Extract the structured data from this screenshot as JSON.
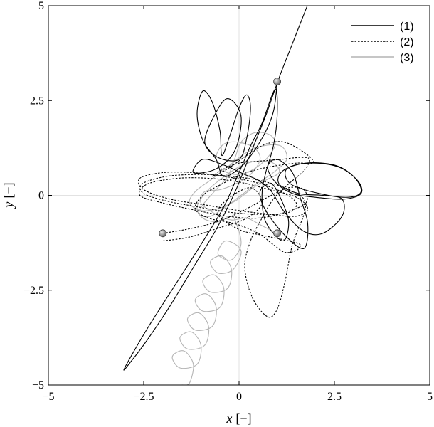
{
  "chart_data": {
    "type": "line",
    "title": "",
    "xlabel_var": "x",
    "xlabel_unit": "[−]",
    "ylabel_var": "y",
    "ylabel_unit": "[−]",
    "xlim": [
      -5,
      5
    ],
    "ylim": [
      -5,
      5
    ],
    "xticks": [
      -5,
      -2.5,
      0,
      2.5,
      5
    ],
    "yticks": [
      -5,
      -2.5,
      0,
      2.5,
      5
    ],
    "xtick_labels": [
      "−5",
      "−2.5",
      "0",
      "2.5",
      "5"
    ],
    "ytick_labels": [
      "−5",
      "−2.5",
      "0",
      "2.5",
      "5"
    ],
    "grid": "zero-lines",
    "legend": {
      "position": "top-right",
      "entries": [
        {
          "label": "(1)",
          "style": "solid",
          "color": "#000000"
        },
        {
          "label": "(2)",
          "style": "dotted",
          "color": "#000000"
        },
        {
          "label": "(3)",
          "style": "solid",
          "color": "#b4b4b4"
        }
      ]
    },
    "bodies": [
      {
        "x": 1.0,
        "y": 3.0
      },
      {
        "x": -2.0,
        "y": -1.0
      },
      {
        "x": 1.0,
        "y": -1.0
      }
    ],
    "series": [
      {
        "name": "(1)",
        "color": "#000000",
        "dash": "none",
        "points": [
          [
            1.0,
            3.0
          ],
          [
            0.9,
            2.2
          ],
          [
            0.6,
            1.5
          ],
          [
            0.1,
            0.8
          ],
          [
            -0.4,
            0.5
          ],
          [
            -0.6,
            0.95
          ],
          [
            -0.95,
            1.45
          ],
          [
            -1.1,
            2.15
          ],
          [
            -0.95,
            2.75
          ],
          [
            -0.7,
            2.45
          ],
          [
            -0.5,
            1.7
          ],
          [
            -0.45,
            1.05
          ],
          [
            -0.25,
            1.55
          ],
          [
            0.0,
            2.3
          ],
          [
            0.2,
            2.65
          ],
          [
            0.3,
            2.3
          ],
          [
            0.2,
            1.5
          ],
          [
            0.0,
            0.95
          ],
          [
            -0.55,
            1.0
          ],
          [
            -0.9,
            1.4
          ],
          [
            -0.65,
            2.1
          ],
          [
            -0.3,
            2.55
          ],
          [
            0.05,
            2.1
          ],
          [
            -0.1,
            1.2
          ],
          [
            -0.6,
            0.7
          ],
          [
            -1.2,
            0.6
          ],
          [
            -0.95,
            0.95
          ],
          [
            -0.4,
            0.8
          ],
          [
            0.15,
            0.55
          ],
          [
            0.5,
            0.4
          ],
          [
            0.85,
            0.1
          ],
          [
            1.2,
            -0.45
          ],
          [
            1.7,
            -0.95
          ],
          [
            2.2,
            -1.0
          ],
          [
            2.7,
            -0.55
          ],
          [
            2.7,
            -0.1
          ],
          [
            2.2,
            0.0
          ],
          [
            1.55,
            0.05
          ],
          [
            1.05,
            0.3
          ],
          [
            1.15,
            0.65
          ],
          [
            1.75,
            0.85
          ],
          [
            2.5,
            0.8
          ],
          [
            3.0,
            0.5
          ],
          [
            3.2,
            0.1
          ],
          [
            2.85,
            -0.05
          ],
          [
            2.1,
            0.05
          ],
          [
            1.35,
            0.3
          ],
          [
            1.25,
            0.7
          ],
          [
            1.85,
            0.85
          ],
          [
            2.6,
            0.75
          ],
          [
            3.1,
            0.4
          ],
          [
            3.2,
            0.05
          ],
          [
            2.75,
            -0.1
          ],
          [
            2.0,
            -0.05
          ],
          [
            1.4,
            0.05
          ],
          [
            0.95,
            0.35
          ],
          [
            0.75,
            0.75
          ],
          [
            1.0,
            0.95
          ],
          [
            1.4,
            0.6
          ],
          [
            1.6,
            -0.05
          ],
          [
            1.8,
            -0.75
          ],
          [
            1.7,
            -1.4
          ],
          [
            1.2,
            -1.05
          ],
          [
            0.7,
            -0.4
          ],
          [
            0.55,
            0.1
          ],
          [
            0.85,
            0.3
          ],
          [
            1.1,
            -0.1
          ],
          [
            1.3,
            -0.7
          ],
          [
            1.15,
            -1.2
          ],
          [
            0.7,
            -0.7
          ],
          [
            0.6,
            0.0
          ],
          [
            0.7,
            0.6
          ],
          [
            0.9,
            1.3
          ],
          [
            1.0,
            2.1
          ],
          [
            0.95,
            2.8
          ],
          [
            0.6,
            1.9
          ],
          [
            0.3,
            1.3
          ],
          [
            0.0,
            0.6
          ],
          [
            -0.4,
            -0.3
          ],
          [
            -1.0,
            -1.3
          ],
          [
            -1.7,
            -2.4
          ],
          [
            -2.4,
            -3.5
          ],
          [
            -3.0,
            -4.55
          ],
          [
            -2.85,
            -4.4
          ],
          [
            -2.4,
            -3.8
          ],
          [
            -1.8,
            -2.9
          ],
          [
            -1.2,
            -1.9
          ],
          [
            -0.6,
            -0.9
          ],
          [
            -0.1,
            0.1
          ],
          [
            0.3,
            1.1
          ],
          [
            0.7,
            2.1
          ],
          [
            1.05,
            3.1
          ],
          [
            1.4,
            4.0
          ],
          [
            1.75,
            4.9
          ],
          [
            1.8,
            5.0
          ]
        ]
      },
      {
        "name": "(2)",
        "color": "#000000",
        "dash": "2.5 2",
        "points": [
          [
            -2.0,
            -1.0
          ],
          [
            -1.4,
            -0.9
          ],
          [
            -0.75,
            -0.75
          ],
          [
            -0.2,
            -0.55
          ],
          [
            0.3,
            -0.3
          ],
          [
            0.75,
            -0.05
          ],
          [
            1.3,
            0.2
          ],
          [
            1.7,
            0.15
          ],
          [
            1.75,
            -0.2
          ],
          [
            1.2,
            -0.45
          ],
          [
            0.5,
            -0.6
          ],
          [
            -0.3,
            -0.55
          ],
          [
            -1.1,
            -0.4
          ],
          [
            -2.0,
            -0.2
          ],
          [
            -2.6,
            0.0
          ],
          [
            -2.4,
            0.3
          ],
          [
            -1.6,
            0.45
          ],
          [
            -0.8,
            0.45
          ],
          [
            0.0,
            0.35
          ],
          [
            0.8,
            0.15
          ],
          [
            1.5,
            -0.05
          ],
          [
            1.8,
            -0.35
          ],
          [
            1.5,
            -0.55
          ],
          [
            0.8,
            -0.5
          ],
          [
            0.0,
            -0.4
          ],
          [
            -0.9,
            -0.25
          ],
          [
            -1.8,
            -0.1
          ],
          [
            -2.5,
            0.15
          ],
          [
            -2.6,
            0.45
          ],
          [
            -2.0,
            0.6
          ],
          [
            -1.2,
            0.6
          ],
          [
            -0.4,
            0.5
          ],
          [
            0.4,
            0.35
          ],
          [
            1.1,
            0.1
          ],
          [
            1.5,
            -0.2
          ],
          [
            1.3,
            -0.45
          ],
          [
            0.6,
            -0.5
          ],
          [
            -0.2,
            -0.45
          ],
          [
            -1.1,
            -0.3
          ],
          [
            -1.9,
            -0.15
          ],
          [
            -2.5,
            0.05
          ],
          [
            -2.55,
            0.3
          ],
          [
            -1.9,
            0.5
          ],
          [
            -1.0,
            0.55
          ],
          [
            -0.2,
            0.5
          ],
          [
            0.5,
            0.4
          ],
          [
            1.2,
            0.2
          ],
          [
            1.7,
            -0.1
          ],
          [
            1.7,
            -0.5
          ],
          [
            1.4,
            -1.3
          ],
          [
            1.2,
            -2.3
          ],
          [
            1.0,
            -3.0
          ],
          [
            0.75,
            -3.2
          ],
          [
            0.35,
            -2.7
          ],
          [
            0.15,
            -1.9
          ],
          [
            0.3,
            -1.2
          ],
          [
            0.6,
            -0.6
          ],
          [
            0.9,
            -0.1
          ],
          [
            1.3,
            0.3
          ],
          [
            1.7,
            0.65
          ],
          [
            1.85,
            0.95
          ],
          [
            1.6,
            1.0
          ],
          [
            1.1,
            0.95
          ],
          [
            0.5,
            0.9
          ],
          [
            0.0,
            0.85
          ],
          [
            -0.4,
            0.7
          ],
          [
            -0.7,
            0.5
          ],
          [
            -0.3,
            0.7
          ],
          [
            0.2,
            1.05
          ],
          [
            0.7,
            1.35
          ],
          [
            1.2,
            1.4
          ],
          [
            1.75,
            1.1
          ],
          [
            1.95,
            0.85
          ],
          [
            1.5,
            0.85
          ],
          [
            0.8,
            0.75
          ],
          [
            0.2,
            0.6
          ],
          [
            -0.45,
            0.3
          ],
          [
            -0.95,
            0.0
          ],
          [
            -1.15,
            -0.35
          ],
          [
            -0.8,
            -0.6
          ],
          [
            -0.1,
            -0.75
          ],
          [
            0.5,
            -1.0
          ],
          [
            0.9,
            -1.3
          ],
          [
            1.2,
            -1.5
          ],
          [
            1.5,
            -1.45
          ],
          [
            1.6,
            -1.3
          ],
          [
            1.3,
            -1.2
          ],
          [
            0.6,
            -1.05
          ],
          [
            0.0,
            -0.9
          ],
          [
            -0.55,
            -0.5
          ],
          [
            -0.3,
            -0.1
          ],
          [
            0.3,
            0.2
          ],
          [
            0.6,
            -0.2
          ],
          [
            0.2,
            -0.6
          ],
          [
            -0.5,
            -0.85
          ],
          [
            -1.3,
            -1.1
          ],
          [
            -2.0,
            -1.2
          ]
        ]
      },
      {
        "name": "(3)",
        "color": "#b4b4b4",
        "dash": "none",
        "points": [
          [
            1.0,
            -1.0
          ],
          [
            0.6,
            -0.8
          ],
          [
            0.2,
            -0.6
          ],
          [
            -0.2,
            -0.65
          ],
          [
            -0.6,
            -0.5
          ],
          [
            -1.0,
            -0.2
          ],
          [
            -0.9,
            0.1
          ],
          [
            -0.5,
            0.15
          ],
          [
            -0.1,
            0.3
          ],
          [
            0.3,
            0.55
          ],
          [
            0.55,
            0.95
          ],
          [
            0.4,
            1.25
          ],
          [
            0.0,
            1.4
          ],
          [
            -0.4,
            1.35
          ],
          [
            -0.6,
            1.0
          ],
          [
            -0.4,
            0.65
          ],
          [
            0.0,
            0.55
          ],
          [
            0.4,
            0.7
          ],
          [
            0.75,
            1.0
          ],
          [
            0.95,
            1.35
          ],
          [
            0.8,
            1.6
          ],
          [
            0.4,
            1.65
          ],
          [
            0.05,
            1.4
          ],
          [
            -0.1,
            1.0
          ],
          [
            -0.3,
            0.5
          ],
          [
            -0.65,
            0.1
          ],
          [
            -0.95,
            -0.25
          ],
          [
            -1.05,
            -0.5
          ],
          [
            -0.75,
            -0.55
          ],
          [
            -0.35,
            -0.3
          ],
          [
            0.05,
            0.0
          ],
          [
            0.45,
            0.3
          ],
          [
            0.9,
            0.6
          ],
          [
            1.25,
            0.95
          ],
          [
            1.1,
            1.3
          ],
          [
            0.6,
            1.3
          ],
          [
            0.15,
            1.1
          ],
          [
            -0.3,
            0.75
          ],
          [
            -0.75,
            0.4
          ],
          [
            -1.15,
            0.1
          ],
          [
            -1.3,
            -0.2
          ],
          [
            -1.0,
            -0.4
          ],
          [
            -0.55,
            -0.35
          ],
          [
            -0.1,
            -0.15
          ],
          [
            0.3,
            0.15
          ],
          [
            0.7,
            0.4
          ],
          [
            1.05,
            0.6
          ],
          [
            0.9,
            0.85
          ],
          [
            0.45,
            0.9
          ],
          [
            0.0,
            0.75
          ],
          [
            -0.45,
            0.45
          ],
          [
            -0.85,
            0.1
          ],
          [
            -1.1,
            -0.3
          ],
          [
            -0.95,
            -0.6
          ],
          [
            -0.55,
            -0.7
          ],
          [
            -0.2,
            -0.55
          ],
          [
            -0.05,
            -0.8
          ],
          [
            0.05,
            -1.3
          ],
          [
            -0.2,
            -1.7
          ],
          [
            -0.55,
            -1.55
          ],
          [
            -0.35,
            -1.2
          ],
          [
            0.05,
            -1.45
          ],
          [
            -0.15,
            -1.95
          ],
          [
            -0.55,
            -2.05
          ],
          [
            -0.75,
            -1.75
          ],
          [
            -0.45,
            -1.6
          ],
          [
            -0.2,
            -1.95
          ],
          [
            -0.3,
            -2.45
          ],
          [
            -0.75,
            -2.55
          ],
          [
            -0.95,
            -2.25
          ],
          [
            -0.65,
            -2.1
          ],
          [
            -0.4,
            -2.45
          ],
          [
            -0.5,
            -2.95
          ],
          [
            -0.95,
            -3.05
          ],
          [
            -1.15,
            -2.75
          ],
          [
            -0.85,
            -2.6
          ],
          [
            -0.6,
            -2.95
          ],
          [
            -0.7,
            -3.45
          ],
          [
            -1.15,
            -3.55
          ],
          [
            -1.35,
            -3.25
          ],
          [
            -1.05,
            -3.1
          ],
          [
            -0.8,
            -3.45
          ],
          [
            -0.9,
            -3.95
          ],
          [
            -1.35,
            -4.05
          ],
          [
            -1.55,
            -3.75
          ],
          [
            -1.25,
            -3.6
          ],
          [
            -1.0,
            -3.95
          ],
          [
            -1.1,
            -4.45
          ],
          [
            -1.55,
            -4.55
          ],
          [
            -1.75,
            -4.25
          ],
          [
            -1.45,
            -4.1
          ],
          [
            -1.2,
            -4.45
          ],
          [
            -1.3,
            -4.95
          ],
          [
            -1.5,
            -5.0
          ]
        ]
      }
    ]
  }
}
